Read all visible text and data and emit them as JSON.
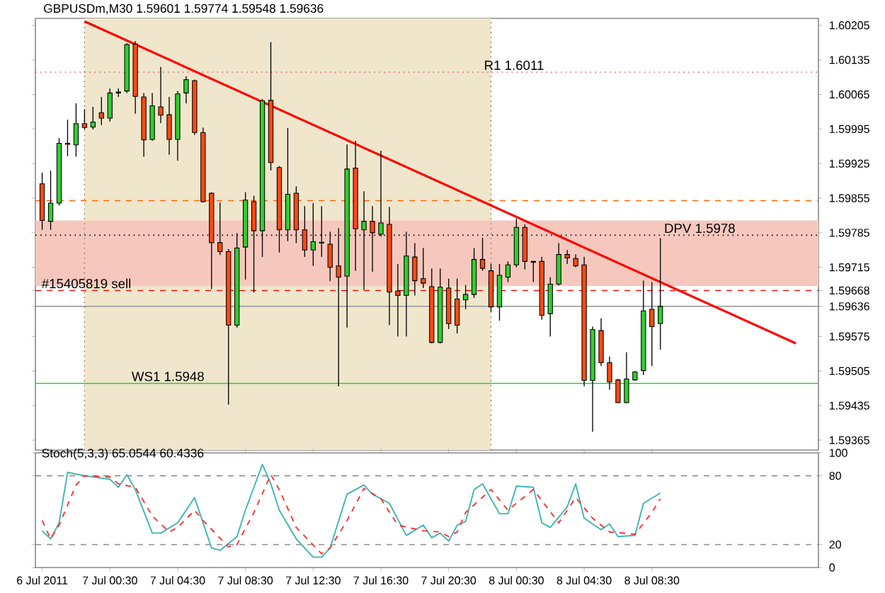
{
  "chart_data": [
    {
      "type": "candlestick",
      "title": "GBPUSDm,M30  1.59601 1.59774 1.59548 1.59636",
      "x": [
        "2011-07-06T20:30",
        "2011-07-06T21:00",
        "2011-07-06T21:30",
        "2011-07-06T22:00",
        "2011-07-06T22:30",
        "2011-07-06T23:00",
        "2011-07-06T23:30",
        "2011-07-07T00:00",
        "2011-07-07T00:30",
        "2011-07-07T01:00",
        "2011-07-07T01:30",
        "2011-07-07T02:00",
        "2011-07-07T02:30",
        "2011-07-07T03:00",
        "2011-07-07T03:30",
        "2011-07-07T04:00",
        "2011-07-07T04:30",
        "2011-07-07T05:00",
        "2011-07-07T05:30",
        "2011-07-07T06:00",
        "2011-07-07T06:30",
        "2011-07-07T07:00",
        "2011-07-07T07:30",
        "2011-07-07T08:00",
        "2011-07-07T08:30",
        "2011-07-07T09:00",
        "2011-07-07T09:30",
        "2011-07-07T10:00",
        "2011-07-07T10:30",
        "2011-07-07T11:00",
        "2011-07-07T11:30",
        "2011-07-07T12:00",
        "2011-07-07T12:30",
        "2011-07-07T13:00",
        "2011-07-07T13:30",
        "2011-07-07T14:00",
        "2011-07-07T14:30",
        "2011-07-07T15:00",
        "2011-07-07T15:30",
        "2011-07-07T16:00",
        "2011-07-07T16:30",
        "2011-07-07T17:00",
        "2011-07-07T17:30",
        "2011-07-07T18:00",
        "2011-07-07T18:30",
        "2011-07-07T19:00",
        "2011-07-07T19:30",
        "2011-07-07T20:00",
        "2011-07-07T20:30",
        "2011-07-07T21:00",
        "2011-07-07T21:30",
        "2011-07-07T22:00",
        "2011-07-07T22:30",
        "2011-07-07T23:00",
        "2011-07-07T23:30",
        "2011-07-08T00:00",
        "2011-07-08T00:30",
        "2011-07-08T01:00",
        "2011-07-08T01:30",
        "2011-07-08T02:00",
        "2011-07-08T02:30",
        "2011-07-08T03:00",
        "2011-07-08T03:30",
        "2011-07-08T04:00",
        "2011-07-08T04:30",
        "2011-07-08T05:00",
        "2011-07-08T05:30",
        "2011-07-08T06:00",
        "2011-07-08T06:30",
        "2011-07-08T07:00",
        "2011-07-08T07:30",
        "2011-07-08T08:00",
        "2011-07-08T08:30",
        "2011-07-08T09:00"
      ],
      "ohlc": [
        [
          1.59884,
          1.59907,
          1.59791,
          1.5981
        ],
        [
          1.59808,
          1.59911,
          1.59791,
          1.59845
        ],
        [
          1.59845,
          1.59977,
          1.5984,
          1.59966
        ],
        [
          1.59966,
          1.60014,
          1.5994,
          1.59964
        ],
        [
          1.59963,
          1.60047,
          1.59939,
          1.60006
        ],
        [
          1.60006,
          1.60035,
          1.59994,
          1.59998
        ],
        [
          1.59999,
          1.6004,
          1.59994,
          1.60009
        ],
        [
          1.60028,
          1.6006,
          1.60003,
          1.60017
        ],
        [
          1.60017,
          1.60077,
          1.6001,
          1.60068
        ],
        [
          1.60068,
          1.60077,
          1.6006,
          1.6007
        ],
        [
          1.60072,
          1.60169,
          1.60068,
          1.60166
        ],
        [
          1.60167,
          1.60173,
          1.60026,
          1.60061
        ],
        [
          1.6006,
          1.60068,
          1.59939,
          1.59973
        ],
        [
          1.59974,
          1.60068,
          1.59971,
          1.60042
        ],
        [
          1.6004,
          1.60121,
          1.60007,
          1.60023
        ],
        [
          1.60024,
          1.6006,
          1.59943,
          1.59974
        ],
        [
          1.59974,
          1.60072,
          1.59931,
          1.60066
        ],
        [
          1.60068,
          1.60102,
          1.60047,
          1.60095
        ],
        [
          1.60093,
          1.60095,
          1.59983,
          1.59988
        ],
        [
          1.59988,
          1.59998,
          1.59846,
          1.59848
        ],
        [
          1.59865,
          1.59867,
          1.59671,
          1.59765
        ],
        [
          1.59765,
          1.59846,
          1.5974,
          1.59747
        ],
        [
          1.59747,
          1.59752,
          1.59437,
          1.59598
        ],
        [
          1.59598,
          1.59784,
          1.59593,
          1.59754
        ],
        [
          1.59756,
          1.59867,
          1.5969,
          1.59851
        ],
        [
          1.59848,
          1.5986,
          1.59664,
          1.59789
        ],
        [
          1.59789,
          1.60056,
          1.59736,
          1.60052
        ],
        [
          1.60053,
          1.60171,
          1.59911,
          1.59927
        ],
        [
          1.59917,
          1.5992,
          1.59745,
          1.59791
        ],
        [
          1.59791,
          1.59997,
          1.59768,
          1.59863
        ],
        [
          1.59865,
          1.59879,
          1.59764,
          1.59791
        ],
        [
          1.59791,
          1.59839,
          1.59736,
          1.5975
        ],
        [
          1.5975,
          1.59845,
          1.59718,
          1.59767
        ],
        [
          1.59764,
          1.59839,
          1.59736,
          1.59766
        ],
        [
          1.59762,
          1.59787,
          1.59687,
          1.59715
        ],
        [
          1.59718,
          1.59794,
          1.59474,
          1.59695
        ],
        [
          1.59697,
          1.59964,
          1.59593,
          1.59914
        ],
        [
          1.59916,
          1.59971,
          1.59708,
          1.59793
        ],
        [
          1.59791,
          1.59869,
          1.59669,
          1.59808
        ],
        [
          1.59808,
          1.59839,
          1.59706,
          1.59785
        ],
        [
          1.59782,
          1.59951,
          1.59777,
          1.59805
        ],
        [
          1.59802,
          1.59837,
          1.59598,
          1.59665
        ],
        [
          1.59667,
          1.59722,
          1.59575,
          1.59658
        ],
        [
          1.59658,
          1.59787,
          1.59575,
          1.59738
        ],
        [
          1.59736,
          1.59764,
          1.59658,
          1.59688
        ],
        [
          1.59692,
          1.59754,
          1.59673,
          1.59683
        ],
        [
          1.59676,
          1.59713,
          1.59561,
          1.59563
        ],
        [
          1.59563,
          1.59713,
          1.59561,
          1.59675
        ],
        [
          1.59673,
          1.59692,
          1.5959,
          1.59601
        ],
        [
          1.59651,
          1.59692,
          1.59581,
          1.59598
        ],
        [
          1.59649,
          1.59679,
          1.5963,
          1.5966
        ],
        [
          1.5966,
          1.59754,
          1.59653,
          1.59731
        ],
        [
          1.59731,
          1.59775,
          1.59708,
          1.59713
        ],
        [
          1.59708,
          1.59722,
          1.59625,
          1.59635
        ],
        [
          1.59635,
          1.59722,
          1.59607,
          1.59699
        ],
        [
          1.59695,
          1.59727,
          1.59685,
          1.5972
        ],
        [
          1.5972,
          1.59814,
          1.59715,
          1.59796
        ],
        [
          1.59796,
          1.59802,
          1.59711,
          1.59727
        ],
        [
          1.59727,
          1.59727,
          1.59685,
          1.59725
        ],
        [
          1.59727,
          1.59736,
          1.59609,
          1.59618
        ],
        [
          1.59621,
          1.59695,
          1.59575,
          1.59681
        ],
        [
          1.59681,
          1.59764,
          1.59678,
          1.59741
        ],
        [
          1.59741,
          1.5975,
          1.59722,
          1.59734
        ],
        [
          1.59733,
          1.59741,
          1.59715,
          1.59718
        ],
        [
          1.5972,
          1.59736,
          1.59474,
          1.59486
        ],
        [
          1.59486,
          1.59595,
          1.59382,
          1.59589
        ],
        [
          1.59587,
          1.59612,
          1.59515,
          1.59522
        ],
        [
          1.59522,
          1.59534,
          1.59467,
          1.59483
        ],
        [
          1.59487,
          1.59489,
          1.5944,
          1.59441
        ],
        [
          1.59441,
          1.59543,
          1.5944,
          1.59489
        ],
        [
          1.59487,
          1.59505,
          1.59485,
          1.59503
        ],
        [
          1.59506,
          1.59688,
          1.59497,
          1.59627
        ],
        [
          1.5963,
          1.59685,
          1.59515,
          1.59595
        ],
        [
          1.59601,
          1.59774,
          1.59548,
          1.59636
        ]
      ],
      "series": [
        {
          "type": "line",
          "color": "#ff0000",
          "x": [
            "2011-07-06T23:00",
            "2011-07-08T17:00"
          ],
          "values": [
            1.60213,
            1.59561
          ]
        }
      ],
      "xlim": [
        "2011-07-06T20:06",
        "2011-07-08T18:20"
      ],
      "ylim": [
        1.59345,
        1.60219
      ],
      "yticks": [
        1.59365,
        1.59435,
        1.59505,
        1.59575,
        1.59636,
        1.59668,
        1.59715,
        1.59785,
        1.59855,
        1.59925,
        1.59995,
        1.60065,
        1.60135,
        1.60205
      ],
      "tick_labels": "y",
      "bands": [
        {
          "axis": "x",
          "from": "2011-07-06T23:00",
          "to": "2011-07-07T23:00",
          "color": "#efe6cc"
        },
        {
          "axis": "y",
          "from": 1.59677,
          "to": 1.5981,
          "color": "#f6c8bd"
        }
      ],
      "ref_lines": [
        {
          "axis": "y",
          "value": 1.6011,
          "label": "R1  1.6011",
          "color": "#e06060",
          "line_style": "dotted"
        },
        {
          "axis": "y",
          "value": 1.5978,
          "label": "DPV  1.5978",
          "color": "#000000",
          "line_style": "dotted"
        },
        {
          "axis": "y",
          "value": 1.5948,
          "label": "WS1  1.5948",
          "color": "#33cc33",
          "line_style": "solid"
        },
        {
          "axis": "y",
          "value": 1.59668,
          "label": "#15405819 sell",
          "color": "#ff0000",
          "line_style": "dashed"
        },
        {
          "axis": "y",
          "value": 1.59636,
          "color": "#a0a0a0",
          "line_style": "solid"
        },
        {
          "axis": "y",
          "value": 1.5985,
          "color": "#ff6600",
          "line_style": "dashed"
        },
        {
          "axis": "x",
          "value": "2011-07-06T23:00",
          "color": "#8b7d5a",
          "line_style": "dotted"
        },
        {
          "axis": "x",
          "value": "2011-07-07T23:00",
          "color": "#8b7d5a",
          "line_style": "dotted"
        }
      ]
    },
    {
      "type": "line",
      "title": "Stoch(5,3,3) 65.0544 60.4336",
      "series": [
        {
          "color": "#3cb4b4",
          "line_style": "solid",
          "x": [
            "2011-07-06T20:30",
            "2011-07-06T21:00",
            "2011-07-06T21:30",
            "2011-07-06T22:00",
            "2011-07-06T23:00",
            "2011-07-06T23:30",
            "2011-07-07T00:30",
            "2011-07-07T01:00",
            "2011-07-07T01:30",
            "2011-07-07T02:00",
            "2011-07-07T03:00",
            "2011-07-07T03:30",
            "2011-07-07T04:30",
            "2011-07-07T05:30",
            "2011-07-07T06:00",
            "2011-07-07T06:30",
            "2011-07-07T07:00",
            "2011-07-07T08:00",
            "2011-07-07T08:30",
            "2011-07-07T09:30",
            "2011-07-07T10:00",
            "2011-07-07T10:30",
            "2011-07-07T11:30",
            "2011-07-07T12:30",
            "2011-07-07T13:00",
            "2011-07-07T13:30",
            "2011-07-07T14:30",
            "2011-07-07T15:30",
            "2011-07-07T16:00",
            "2011-07-07T17:00",
            "2011-07-07T18:00",
            "2011-07-07T19:00",
            "2011-07-07T19:30",
            "2011-07-07T20:00",
            "2011-07-07T20:30",
            "2011-07-07T21:00",
            "2011-07-07T21:30",
            "2011-07-07T22:00",
            "2011-07-07T22:30",
            "2011-07-07T23:30",
            "2011-07-08T00:00",
            "2011-07-08T00:30",
            "2011-07-08T01:30",
            "2011-07-08T02:00",
            "2011-07-08T02:30",
            "2011-07-08T03:30",
            "2011-07-08T04:00",
            "2011-07-08T04:30",
            "2011-07-08T05:30",
            "2011-07-08T06:00",
            "2011-07-08T06:30",
            "2011-07-08T07:30",
            "2011-07-08T08:00",
            "2011-07-08T09:00"
          ],
          "values": [
            32,
            25,
            39,
            83,
            80,
            79,
            77,
            70,
            81,
            68,
            30,
            30,
            39,
            61,
            39,
            17,
            15,
            27,
            50,
            90,
            73,
            50,
            25,
            9,
            9,
            17,
            64,
            72,
            64,
            56,
            28,
            37,
            26,
            30,
            23,
            37,
            40,
            68,
            73,
            47,
            47,
            71,
            70,
            39,
            35,
            53,
            73,
            43,
            33,
            38,
            27,
            28,
            56,
            65
          ]
        },
        {
          "color": "#ff3030",
          "line_style": "dashed",
          "x": [
            "2011-07-06T20:30",
            "2011-07-06T21:00",
            "2011-07-06T21:30",
            "2011-07-06T22:30",
            "2011-07-06T23:00",
            "2011-07-07T00:30",
            "2011-07-07T01:00",
            "2011-07-07T02:00",
            "2011-07-07T03:00",
            "2011-07-07T04:00",
            "2011-07-07T04:30",
            "2011-07-07T05:30",
            "2011-07-07T06:00",
            "2011-07-07T07:30",
            "2011-07-07T08:00",
            "2011-07-07T09:00",
            "2011-07-07T10:00",
            "2011-07-07T10:30",
            "2011-07-07T11:30",
            "2011-07-07T13:00",
            "2011-07-07T13:30",
            "2011-07-07T14:30",
            "2011-07-07T15:30",
            "2011-07-07T16:30",
            "2011-07-07T17:30",
            "2011-07-07T19:00",
            "2011-07-07T20:00",
            "2011-07-07T20:30",
            "2011-07-07T21:00",
            "2011-07-07T21:30",
            "2011-07-07T23:00",
            "2011-07-08T00:00",
            "2011-07-08T01:30",
            "2011-07-08T03:00",
            "2011-07-08T04:00",
            "2011-07-08T05:00",
            "2011-07-08T06:00",
            "2011-07-08T07:30",
            "2011-07-08T08:30",
            "2011-07-08T09:00"
          ],
          "values": [
            41,
            25,
            37,
            72,
            80,
            79,
            73,
            70,
            45,
            31,
            35,
            50,
            41,
            18,
            20,
            48,
            81,
            68,
            35,
            12,
            17,
            41,
            69,
            60,
            37,
            32,
            31,
            27,
            31,
            48,
            68,
            50,
            68,
            39,
            61,
            43,
            31,
            29,
            48,
            60
          ]
        }
      ],
      "xlim": [
        "2011-07-06T20:06",
        "2011-07-08T18:20"
      ],
      "xticks": [
        {
          "value": "2011-07-06T20:30",
          "label": "6 Jul 2011"
        },
        {
          "value": "2011-07-07T00:30",
          "label": "7 Jul 00:30"
        },
        {
          "value": "2011-07-07T04:30",
          "label": "7 Jul 04:30"
        },
        {
          "value": "2011-07-07T08:30",
          "label": "7 Jul 08:30"
        },
        {
          "value": "2011-07-07T12:30",
          "label": "7 Jul 12:30"
        },
        {
          "value": "2011-07-07T16:30",
          "label": "7 Jul 16:30"
        },
        {
          "value": "2011-07-07T20:30",
          "label": "7 Jul 20:30"
        },
        {
          "value": "2011-07-08T00:30",
          "label": "8 Jul 00:30"
        },
        {
          "value": "2011-07-08T04:30",
          "label": "8 Jul 04:30"
        },
        {
          "value": "2011-07-08T08:30",
          "label": "8 Jul 08:30"
        }
      ],
      "ylim": [
        0,
        100
      ],
      "yticks": [
        0,
        20,
        80,
        100
      ],
      "ref_lines": [
        {
          "axis": "y",
          "value": 80,
          "color": "#909090",
          "line_style": "dashed"
        },
        {
          "axis": "y",
          "value": 20,
          "color": "#909090",
          "line_style": "dashed"
        }
      ]
    }
  ]
}
